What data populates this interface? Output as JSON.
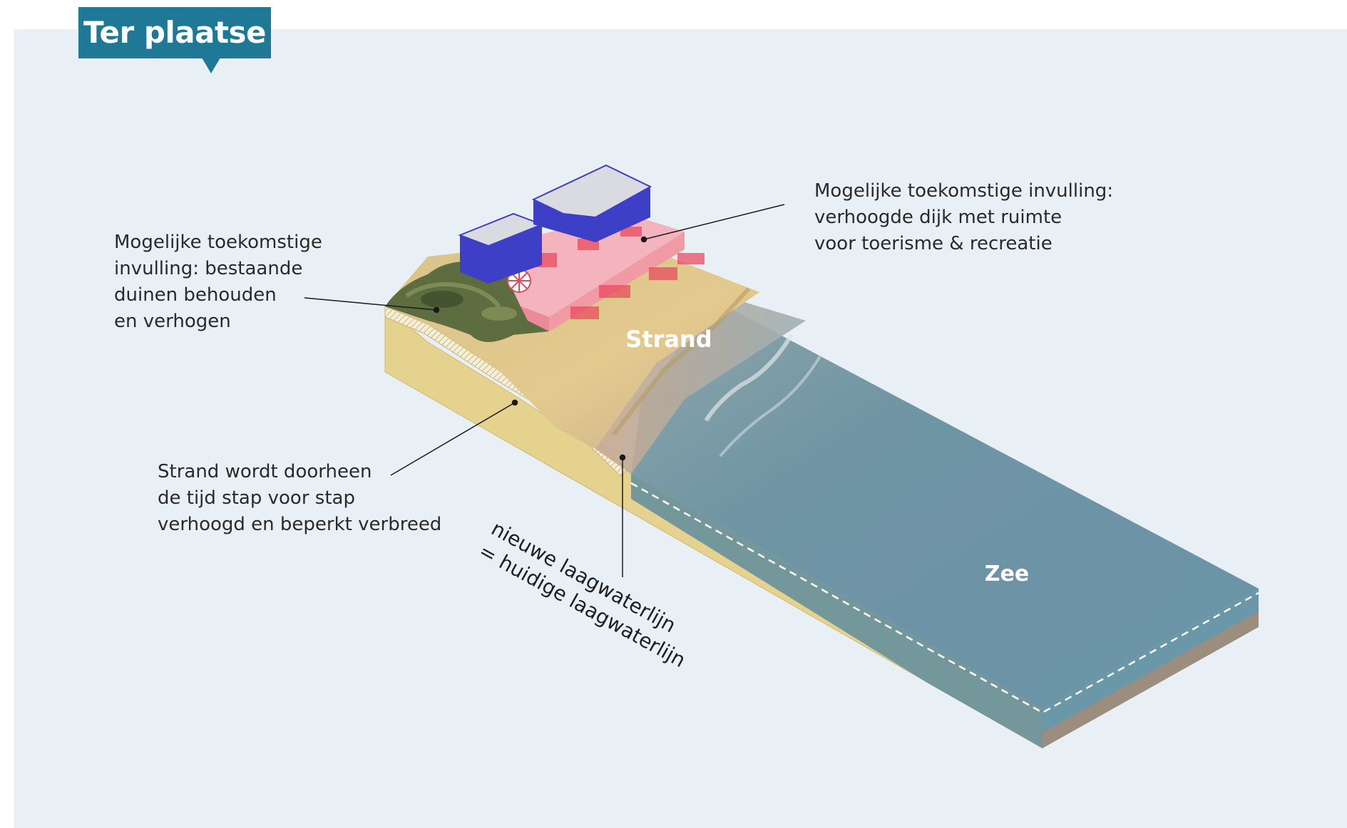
{
  "header": {
    "title": "Ter plaatse"
  },
  "diagram": {
    "labels": {
      "beach": "Strand",
      "sea": "Zee"
    },
    "annotations": {
      "dunes": "Mogelijke toekomstige\ninvulling: bestaande\nduinen behouden\nen verhogen",
      "dike": "Mogelijke toekomstige invulling:\nverhoogde dijk met ruimte\nvoor toerisme & recreatie",
      "beach_raise": "Strand wordt doorheen\nde tijd stap voor stap\nverhoogd en beperkt verbreed",
      "low_water_line": "nieuwe laagwaterlijn\n= huidige laagwaterlijn"
    }
  },
  "colors": {
    "title_bg": "#1f7896",
    "panel_bg": "#e8eff5",
    "sand": "#e6d28f",
    "sea": "#6d96a8",
    "building": "#3d3fc7",
    "promenade": "#f4a9b3",
    "dune": "#5b6b3e"
  }
}
